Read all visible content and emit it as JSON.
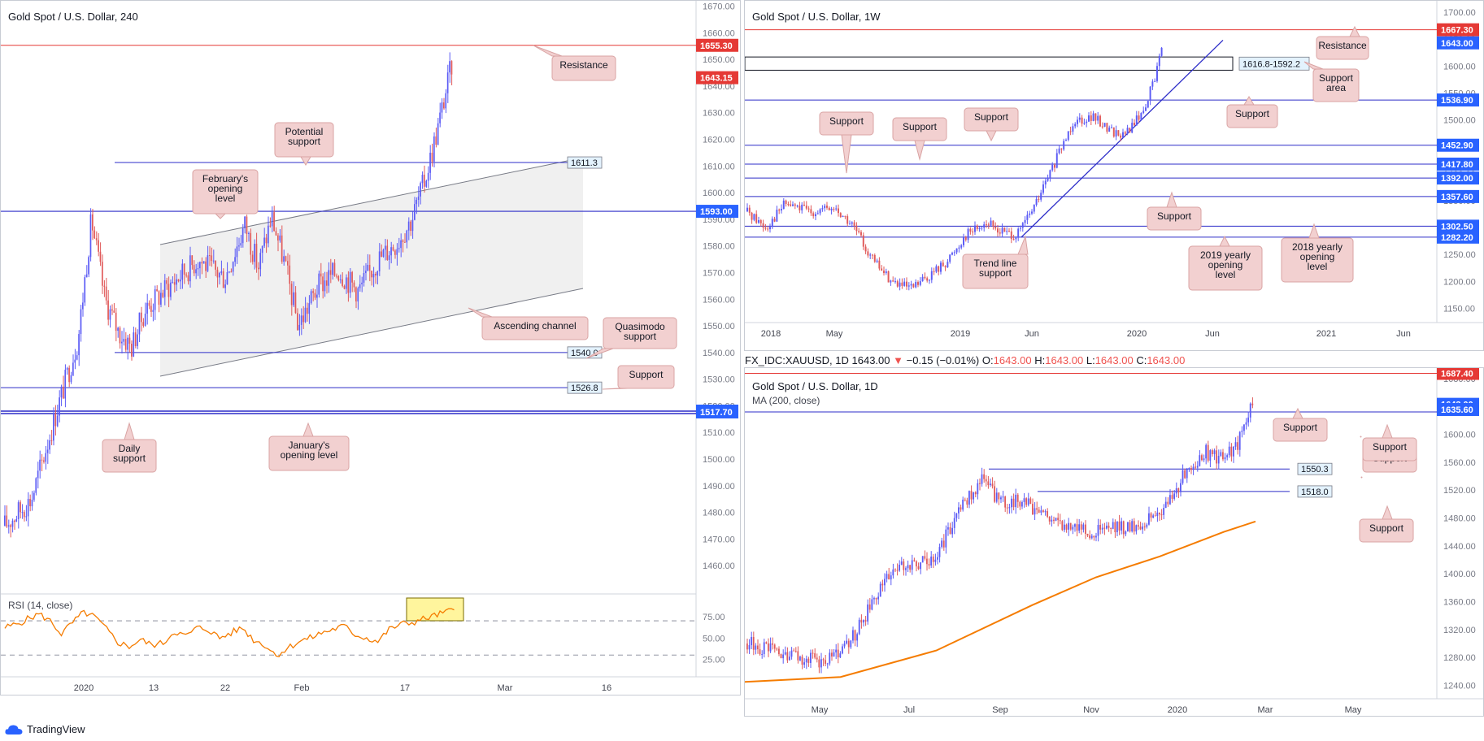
{
  "panels": [
    {
      "id": "p240",
      "title": "Gold Spot / U.S. Dollar, 240",
      "chart_data": {
        "type": "candlestick",
        "yaxis_ticks": [
          1670,
          1660,
          1650,
          1640,
          1630,
          1620,
          1610,
          1600,
          1590,
          1580,
          1570,
          1560,
          1550,
          1540,
          1530,
          1520,
          1510,
          1500,
          1490,
          1480,
          1470,
          1460
        ],
        "ylim": [
          1450,
          1672
        ],
        "xaxis_ticks": [
          "2020",
          "13",
          "22",
          "Feb",
          "17",
          "Mar",
          "16"
        ],
        "series_path": [
          [
            0,
            1475
          ],
          [
            0.04,
            1485
          ],
          [
            0.08,
            1520
          ],
          [
            0.11,
            1545
          ],
          [
            0.13,
            1590
          ],
          [
            0.15,
            1560
          ],
          [
            0.17,
            1548
          ],
          [
            0.19,
            1542
          ],
          [
            0.21,
            1556
          ],
          [
            0.25,
            1566
          ],
          [
            0.29,
            1575
          ],
          [
            0.33,
            1568
          ],
          [
            0.36,
            1588
          ],
          [
            0.38,
            1572
          ],
          [
            0.4,
            1591
          ],
          [
            0.42,
            1573
          ],
          [
            0.44,
            1550
          ],
          [
            0.47,
            1565
          ],
          [
            0.5,
            1571
          ],
          [
            0.53,
            1563
          ],
          [
            0.56,
            1575
          ],
          [
            0.59,
            1582
          ],
          [
            0.61,
            1590
          ],
          [
            0.63,
            1605
          ],
          [
            0.65,
            1625
          ],
          [
            0.67,
            1648
          ]
        ],
        "last_price": 1643.15,
        "levels": [
          {
            "value": 1655.3,
            "label": "1655.30",
            "color": "#e53935",
            "kind": "resistance"
          },
          {
            "value": 1611.3,
            "label": "1611.3",
            "kind": "potential"
          },
          {
            "value": 1593.0,
            "label": "1593.00",
            "kind": "feb-open"
          },
          {
            "value": 1540.0,
            "label": "1540.0",
            "kind": "quasimodo"
          },
          {
            "value": 1526.8,
            "label": "1526.8",
            "kind": "support"
          },
          {
            "value": 1518.0,
            "label": "1518.00",
            "kind": "jan-open"
          },
          {
            "value": 1517.7,
            "label": "1517.70",
            "kind": "daily"
          }
        ],
        "price_labels": [
          {
            "value": 1655.3,
            "label": "1655.30",
            "color": "#e53935"
          },
          {
            "value": 1643.15,
            "label": "1643.15",
            "color": "#e53935"
          },
          {
            "value": 1593.0,
            "label": "1593.00",
            "color": "#2962ff"
          },
          {
            "value": 1518.0,
            "label": "1518.00",
            "color": "#2962ff"
          },
          {
            "value": 1517.7,
            "label": "1517.70",
            "color": "#2962ff"
          }
        ],
        "annotations": [
          "Resistance",
          "Potential support",
          "February's opening level",
          "Ascending channel",
          "Quasimodo support",
          "Support",
          "Daily support",
          "January's opening level"
        ],
        "rsi": {
          "label": "RSI (14, close)",
          "ticks": [
            75.0,
            50.0,
            25.0
          ],
          "levels": [
            70,
            30
          ],
          "values": [
            62,
            66,
            72,
            78,
            70,
            55,
            68,
            80,
            74,
            60,
            45,
            40,
            48,
            42,
            44,
            58,
            52,
            62,
            60,
            50,
            56,
            62,
            48,
            42,
            30,
            38,
            46,
            50,
            56,
            60,
            64,
            54,
            50,
            46,
            60,
            66,
            68,
            72,
            76,
            80,
            84
          ]
        }
      }
    },
    {
      "id": "p1w",
      "title": "Gold Spot / U.S. Dollar, 1W",
      "chart_data": {
        "type": "candlestick",
        "yaxis_ticks": [
          1700,
          1650,
          1600,
          1550,
          1500,
          1450,
          1400,
          1350,
          1300,
          1250,
          1200,
          1150
        ],
        "ylim": [
          1125,
          1700
        ],
        "xaxis_ticks": [
          "2018",
          "May",
          "2019",
          "Jun",
          "2020",
          "Jun",
          "2021",
          "Jun"
        ],
        "series_path": [
          [
            0,
            1330
          ],
          [
            0.03,
            1300
          ],
          [
            0.06,
            1345
          ],
          [
            0.1,
            1330
          ],
          [
            0.14,
            1335
          ],
          [
            0.17,
            1300
          ],
          [
            0.2,
            1240
          ],
          [
            0.23,
            1200
          ],
          [
            0.26,
            1185
          ],
          [
            0.29,
            1210
          ],
          [
            0.32,
            1240
          ],
          [
            0.35,
            1290
          ],
          [
            0.38,
            1310
          ],
          [
            0.4,
            1295
          ],
          [
            0.43,
            1285
          ],
          [
            0.46,
            1345
          ],
          [
            0.49,
            1420
          ],
          [
            0.52,
            1500
          ],
          [
            0.55,
            1505
          ],
          [
            0.58,
            1480
          ],
          [
            0.6,
            1470
          ],
          [
            0.63,
            1515
          ],
          [
            0.65,
            1580
          ],
          [
            0.66,
            1643
          ]
        ],
        "levels": [
          {
            "value": 1667.3,
            "label": "1667.30",
            "color": "#e53935"
          },
          {
            "value": 1536.9,
            "label": "1536.90"
          },
          {
            "value": 1452.9,
            "label": "1452.90"
          },
          {
            "value": 1417.8,
            "label": "1417.80"
          },
          {
            "value": 1392.0,
            "label": "1392.00"
          },
          {
            "value": 1357.6,
            "label": "1357.60"
          },
          {
            "value": 1302.5,
            "label": "1302.50"
          },
          {
            "value": 1282.2,
            "label": "1282.20"
          }
        ],
        "support_area": {
          "label": "1616.8-1592.2",
          "high": 1616.8,
          "low": 1592.2
        },
        "price_labels": [
          {
            "value": 1667.3,
            "label": "1667.30",
            "color": "#e53935"
          },
          {
            "value": 1643.0,
            "label": "1643.00",
            "color": "#2962ff"
          },
          {
            "value": 1536.9,
            "label": "1536.90",
            "color": "#2962ff"
          },
          {
            "value": 1452.9,
            "label": "1452.90",
            "color": "#2962ff"
          },
          {
            "value": 1417.8,
            "label": "1417.80",
            "color": "#2962ff"
          },
          {
            "value": 1392.0,
            "label": "1392.00",
            "color": "#2962ff"
          },
          {
            "value": 1357.6,
            "label": "1357.60",
            "color": "#2962ff"
          },
          {
            "value": 1302.5,
            "label": "1302.50",
            "color": "#2962ff"
          },
          {
            "value": 1282.2,
            "label": "1282.20",
            "color": "#2962ff"
          }
        ],
        "annotations": [
          "Resistance",
          "Support area",
          "Support",
          "Support",
          "Support",
          "Support",
          "Support",
          "Trend line support",
          "2019 yearly opening level",
          "2018 yearly opening level"
        ]
      }
    },
    {
      "id": "p1d",
      "title": "Gold Spot / U.S. Dollar, 1D",
      "subtitle": "MA (200, close)",
      "chart_data": {
        "type": "candlestick",
        "yaxis_ticks": [
          1680,
          1640,
          1600,
          1560,
          1520,
          1480,
          1440,
          1400,
          1360,
          1320,
          1280,
          1240
        ],
        "ylim": [
          1215,
          1695
        ],
        "xaxis_ticks": [
          "May",
          "Jul",
          "Sep",
          "Nov",
          "2020",
          "Mar",
          "May"
        ],
        "series_path": [
          [
            0,
            1300
          ],
          [
            0.03,
            1290
          ],
          [
            0.06,
            1280
          ],
          [
            0.09,
            1275
          ],
          [
            0.12,
            1285
          ],
          [
            0.15,
            1340
          ],
          [
            0.18,
            1400
          ],
          [
            0.21,
            1415
          ],
          [
            0.24,
            1425
          ],
          [
            0.27,
            1500
          ],
          [
            0.3,
            1535
          ],
          [
            0.32,
            1500
          ],
          [
            0.35,
            1505
          ],
          [
            0.38,
            1480
          ],
          [
            0.41,
            1470
          ],
          [
            0.44,
            1460
          ],
          [
            0.47,
            1465
          ],
          [
            0.5,
            1470
          ],
          [
            0.53,
            1495
          ],
          [
            0.56,
            1555
          ],
          [
            0.58,
            1575
          ],
          [
            0.6,
            1565
          ],
          [
            0.62,
            1580
          ],
          [
            0.64,
            1643
          ]
        ],
        "ma_path": [
          [
            0,
            1245
          ],
          [
            0.15,
            1252
          ],
          [
            0.3,
            1290
          ],
          [
            0.45,
            1355
          ],
          [
            0.55,
            1395
          ],
          [
            0.65,
            1425
          ],
          [
            0.75,
            1460
          ],
          [
            0.8,
            1475
          ]
        ],
        "ma_label": "MA (200, close)",
        "levels": [
          {
            "value": 1687.4,
            "label": "1687.40",
            "color": "#e53935"
          },
          {
            "value": 1635.6,
            "label": "1635.60"
          },
          {
            "value": 1550.3,
            "label": "1550.3"
          },
          {
            "value": 1518.0,
            "label": "1518.0"
          }
        ],
        "price_labels": [
          {
            "value": 1687.4,
            "label": "1687.40",
            "color": "#e53935"
          },
          {
            "value": 1643.0,
            "label": "1643.00",
            "color": "#2962ff"
          },
          {
            "value": 1635.6,
            "label": "1635.60",
            "color": "#2962ff"
          }
        ],
        "annotations": [
          "Support",
          "Support",
          "Support"
        ]
      }
    }
  ],
  "daily_header": {
    "symbol": "FX_IDC:XAUUSD, 1D",
    "price": "1643.00",
    "arrow": "▼",
    "change": "−0.15 (−0.01%)",
    "o_label": "O:",
    "o": "1643.00",
    "h_label": "H:",
    "h": "1643.00",
    "l_label": "L:",
    "l": "1643.00",
    "c_label": "C:",
    "c": "1643.00"
  },
  "brand": {
    "name": "TradingView"
  },
  "colors": {
    "up": "#5b5bf5",
    "down": "#e05a5a",
    "level": "#2c2cc8",
    "resistance": "#e53935",
    "ma": "#f57c00",
    "rsi": "#f57c00",
    "callout_bg": "#f2d0d0",
    "callout_border": "#d9a3a3"
  }
}
